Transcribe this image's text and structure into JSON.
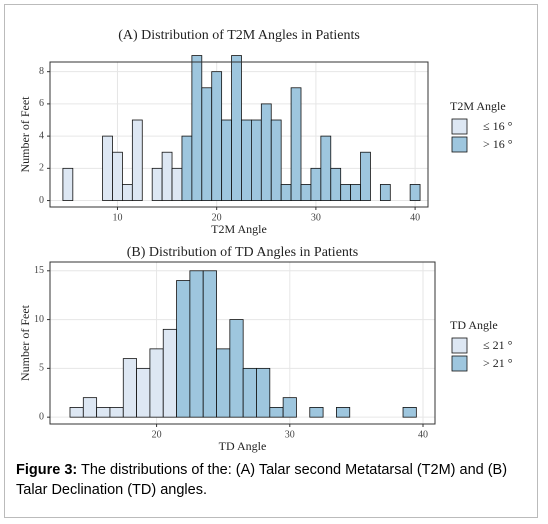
{
  "chart_data": [
    {
      "type": "histogram",
      "title": "(A) Distribution of T2M Angles in Patients",
      "x_label": "T2M Angle",
      "y_label": "Number of Feet",
      "legend_title": "T2M Angle",
      "legend": "right",
      "bins": [
        4.5,
        5.5,
        6.5,
        7.5,
        8.5,
        9.5,
        10.5,
        11.5,
        12.5,
        13.5,
        14.5,
        15.5,
        16.5,
        17.5,
        18.5,
        19.5,
        20.5,
        21.5,
        22.5,
        23.5,
        24.5,
        25.5,
        26.5,
        27.5,
        28.5,
        29.5,
        30.5,
        31.5,
        32.5,
        33.5,
        34.5,
        35.5,
        36.5,
        37.5,
        38.5,
        39.5,
        40.5
      ],
      "series": [
        {
          "name": "≤ 16 °",
          "color": "#dde7f3",
          "values": [
            2,
            0,
            0,
            0,
            4,
            3,
            1,
            5,
            0,
            2,
            3,
            2,
            null,
            null,
            null,
            null,
            null,
            null,
            null,
            null,
            null,
            null,
            null,
            null,
            null,
            null,
            null,
            null,
            null,
            null,
            null,
            null,
            null,
            null,
            null,
            null
          ]
        },
        {
          "name": "> 16 °",
          "color": "#9ec6de",
          "values": [
            null,
            null,
            null,
            null,
            null,
            null,
            null,
            null,
            null,
            null,
            null,
            null,
            4,
            9,
            7,
            8,
            5,
            9,
            5,
            5,
            6,
            5,
            1,
            7,
            1,
            2,
            4,
            2,
            1,
            1,
            3,
            0,
            1,
            0,
            0,
            1
          ]
        }
      ],
      "xlim": [
        3.2,
        41.3
      ],
      "xticks": [
        10,
        20,
        30,
        40
      ],
      "ylim": [
        -0.4,
        8.6
      ],
      "yticks": [
        0,
        2,
        4,
        6,
        8
      ],
      "grid": true
    },
    {
      "type": "histogram",
      "title": "(B) Distribution of TD Angles in Patients",
      "x_label": "TD Angle",
      "y_label": "Number of Feet",
      "legend_title": "TD Angle",
      "legend": "right",
      "bins": [
        13.5,
        14.5,
        15.5,
        16.5,
        17.5,
        18.5,
        19.5,
        20.5,
        21.5,
        22.5,
        23.5,
        24.5,
        25.5,
        26.5,
        27.5,
        28.5,
        29.5,
        30.5,
        31.5,
        32.5,
        33.5,
        34.5,
        35.5,
        36.5,
        37.5,
        38.5,
        39.5
      ],
      "series": [
        {
          "name": "≤ 21 °",
          "color": "#dde7f3",
          "values": [
            1,
            2,
            1,
            1,
            6,
            5,
            7,
            9,
            null,
            null,
            null,
            null,
            null,
            null,
            null,
            null,
            null,
            null,
            null,
            null,
            null,
            null,
            null,
            null,
            null,
            null
          ]
        },
        {
          "name": "> 21 °",
          "color": "#9ec6de",
          "values": [
            null,
            null,
            null,
            null,
            null,
            null,
            null,
            null,
            14,
            15,
            15,
            7,
            10,
            5,
            5,
            1,
            2,
            0,
            1,
            0,
            1,
            0,
            0,
            0,
            0,
            1
          ]
        }
      ],
      "xlim": [
        12.0,
        40.9
      ],
      "xticks": [
        20,
        30,
        40
      ],
      "ylim": [
        -0.7,
        15.9
      ],
      "yticks": [
        0,
        5,
        10,
        15
      ],
      "grid": true
    }
  ],
  "caption": {
    "label": "Figure 3:",
    "text": "The distributions of the: (A) Talar second Metatarsal (T2M) and (B) Talar Declination (TD) angles."
  }
}
